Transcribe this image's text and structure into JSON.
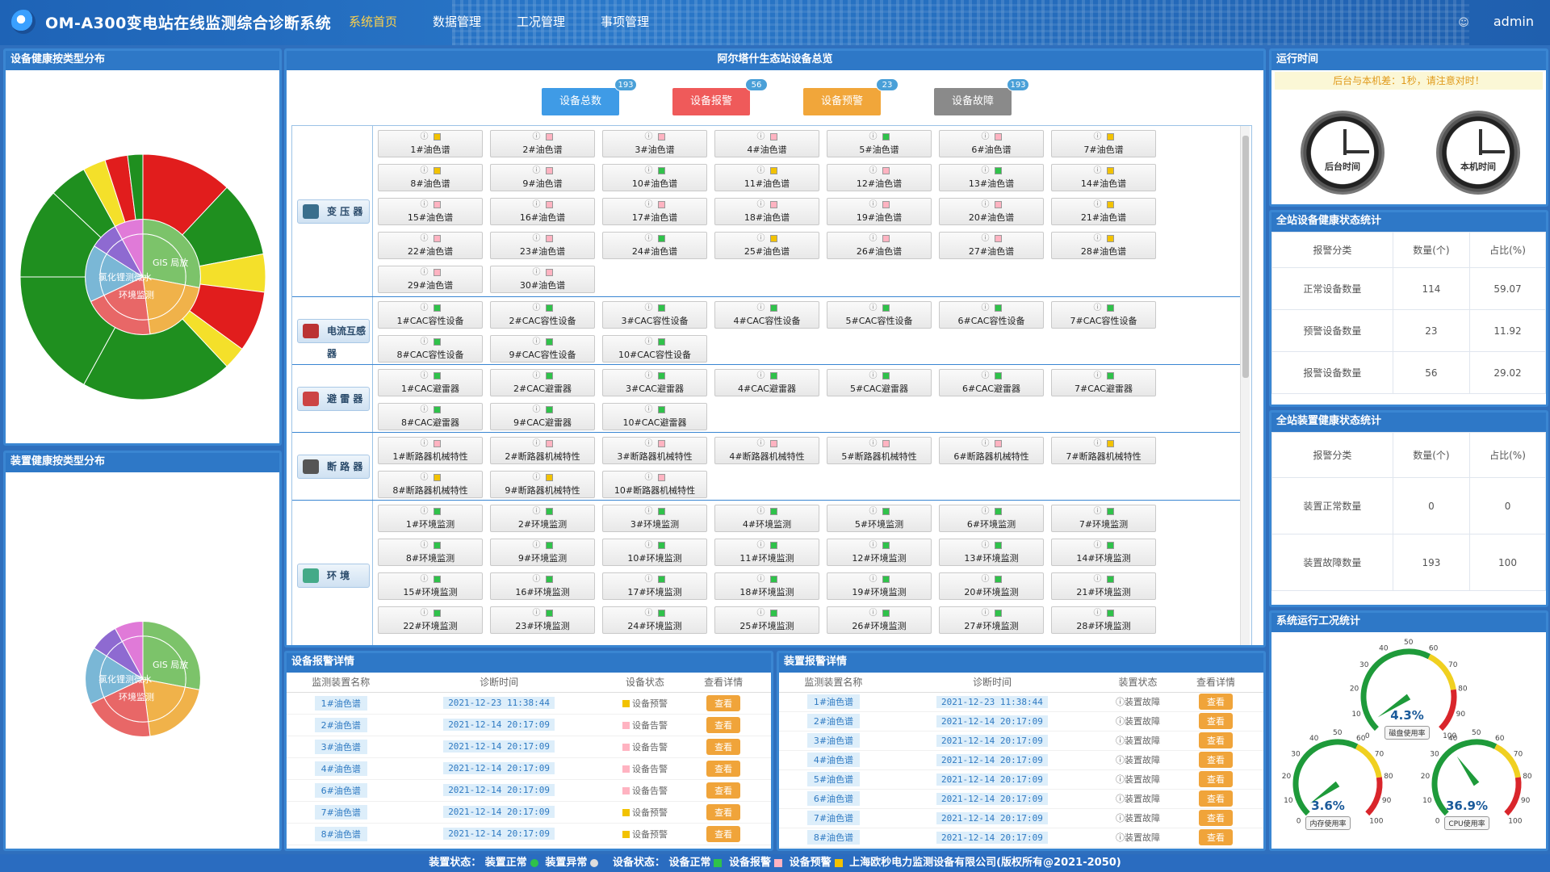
{
  "header": {
    "title": "OM-A300变电站在线监测综合诊断系统",
    "nav": [
      "系统首页",
      "数据管理",
      "工况管理",
      "事项管理"
    ],
    "user": "admin"
  },
  "left_top": {
    "title": "设备健康按类型分布"
  },
  "left_bottom": {
    "title": "装置健康按类型分布"
  },
  "sunburst_inner_labels": [
    "GIS 局放",
    "氯化锂测微水",
    "环境监测"
  ],
  "overview": {
    "title": "阿尔塔什生态站设备总览",
    "buttons": [
      {
        "label": "设备总数",
        "count": "193",
        "color": "#3f9be6"
      },
      {
        "label": "设备报警",
        "count": "56",
        "color": "#ef5a5a"
      },
      {
        "label": "设备预警",
        "count": "23",
        "color": "#f1a63a"
      },
      {
        "label": "设备故障",
        "count": "193",
        "color": "#8a8a8a"
      }
    ],
    "categories": [
      {
        "label": "变 压 器",
        "icon": "transformer-icon",
        "rows": 5,
        "items": [
          {
            "n": "1#油色谱",
            "s": "#f2c200"
          },
          {
            "n": "2#油色谱",
            "s": "#ffb3c1"
          },
          {
            "n": "3#油色谱",
            "s": "#ffb3c1"
          },
          {
            "n": "4#油色谱",
            "s": "#ffb3c1"
          },
          {
            "n": "5#油色谱",
            "s": "#2fc24a"
          },
          {
            "n": "6#油色谱",
            "s": "#ffb3c1"
          },
          {
            "n": "7#油色谱",
            "s": "#f2c200"
          },
          {
            "n": "8#油色谱",
            "s": "#f2c200"
          },
          {
            "n": "9#油色谱",
            "s": "#ffb3c1"
          },
          {
            "n": "10#油色谱",
            "s": "#2fc24a"
          },
          {
            "n": "11#油色谱",
            "s": "#f2c200"
          },
          {
            "n": "12#油色谱",
            "s": "#ffb3c1"
          },
          {
            "n": "13#油色谱",
            "s": "#2fc24a"
          },
          {
            "n": "14#油色谱",
            "s": "#f2c200"
          },
          {
            "n": "15#油色谱",
            "s": "#ffb3c1"
          },
          {
            "n": "16#油色谱",
            "s": "#ffb3c1"
          },
          {
            "n": "17#油色谱",
            "s": "#ffb3c1"
          },
          {
            "n": "18#油色谱",
            "s": "#ffb3c1"
          },
          {
            "n": "19#油色谱",
            "s": "#ffb3c1"
          },
          {
            "n": "20#油色谱",
            "s": "#ffb3c1"
          },
          {
            "n": "21#油色谱",
            "s": "#f2c200"
          },
          {
            "n": "22#油色谱",
            "s": "#ffb3c1"
          },
          {
            "n": "23#油色谱",
            "s": "#ffb3c1"
          },
          {
            "n": "24#油色谱",
            "s": "#2fc24a"
          },
          {
            "n": "25#油色谱",
            "s": "#f2c200"
          },
          {
            "n": "26#油色谱",
            "s": "#ffb3c1"
          },
          {
            "n": "27#油色谱",
            "s": "#ffb3c1"
          },
          {
            "n": "28#油色谱",
            "s": "#f2c200"
          },
          {
            "n": "29#油色谱",
            "s": "#ffb3c1"
          },
          {
            "n": "30#油色谱",
            "s": "#ffb3c1"
          }
        ]
      },
      {
        "label": "电流互感器",
        "icon": "current-transformer-icon",
        "rows": 2,
        "items": [
          {
            "n": "1#CAC容性设备",
            "s": "#2fc24a"
          },
          {
            "n": "2#CAC容性设备",
            "s": "#2fc24a"
          },
          {
            "n": "3#CAC容性设备",
            "s": "#2fc24a"
          },
          {
            "n": "4#CAC容性设备",
            "s": "#2fc24a"
          },
          {
            "n": "5#CAC容性设备",
            "s": "#2fc24a"
          },
          {
            "n": "6#CAC容性设备",
            "s": "#2fc24a"
          },
          {
            "n": "7#CAC容性设备",
            "s": "#2fc24a"
          },
          {
            "n": "8#CAC容性设备",
            "s": "#2fc24a"
          },
          {
            "n": "9#CAC容性设备",
            "s": "#2fc24a"
          },
          {
            "n": "10#CAC容性设备",
            "s": "#2fc24a"
          }
        ]
      },
      {
        "label": "避 雷 器",
        "icon": "arrester-icon",
        "rows": 2,
        "items": [
          {
            "n": "1#CAC避雷器",
            "s": "#2fc24a"
          },
          {
            "n": "2#CAC避雷器",
            "s": "#2fc24a"
          },
          {
            "n": "3#CAC避雷器",
            "s": "#2fc24a"
          },
          {
            "n": "4#CAC避雷器",
            "s": "#2fc24a"
          },
          {
            "n": "5#CAC避雷器",
            "s": "#2fc24a"
          },
          {
            "n": "6#CAC避雷器",
            "s": "#2fc24a"
          },
          {
            "n": "7#CAC避雷器",
            "s": "#2fc24a"
          },
          {
            "n": "8#CAC避雷器",
            "s": "#2fc24a"
          },
          {
            "n": "9#CAC避雷器",
            "s": "#2fc24a"
          },
          {
            "n": "10#CAC避雷器",
            "s": "#2fc24a"
          }
        ]
      },
      {
        "label": "断 路 器",
        "icon": "breaker-icon",
        "rows": 2,
        "items": [
          {
            "n": "1#断路器机械特性",
            "s": "#ffb3c1"
          },
          {
            "n": "2#断路器机械特性",
            "s": "#ffb3c1"
          },
          {
            "n": "3#断路器机械特性",
            "s": "#ffb3c1"
          },
          {
            "n": "4#断路器机械特性",
            "s": "#ffb3c1"
          },
          {
            "n": "5#断路器机械特性",
            "s": "#ffb3c1"
          },
          {
            "n": "6#断路器机械特性",
            "s": "#ffb3c1"
          },
          {
            "n": "7#断路器机械特性",
            "s": "#f2c200"
          },
          {
            "n": "8#断路器机械特性",
            "s": "#f2c200"
          },
          {
            "n": "9#断路器机械特性",
            "s": "#f2c200"
          },
          {
            "n": "10#断路器机械特性",
            "s": "#ffb3c1"
          }
        ]
      },
      {
        "label": "环 境",
        "icon": "environment-icon",
        "rows": 4.4,
        "items": [
          {
            "n": "1#环境监测",
            "s": "#2fc24a"
          },
          {
            "n": "2#环境监测",
            "s": "#2fc24a"
          },
          {
            "n": "3#环境监测",
            "s": "#2fc24a"
          },
          {
            "n": "4#环境监测",
            "s": "#2fc24a"
          },
          {
            "n": "5#环境监测",
            "s": "#2fc24a"
          },
          {
            "n": "6#环境监测",
            "s": "#2fc24a"
          },
          {
            "n": "7#环境监测",
            "s": "#2fc24a"
          },
          {
            "n": "8#环境监测",
            "s": "#2fc24a"
          },
          {
            "n": "9#环境监测",
            "s": "#2fc24a"
          },
          {
            "n": "10#环境监测",
            "s": "#2fc24a"
          },
          {
            "n": "11#环境监测",
            "s": "#2fc24a"
          },
          {
            "n": "12#环境监测",
            "s": "#2fc24a"
          },
          {
            "n": "13#环境监测",
            "s": "#2fc24a"
          },
          {
            "n": "14#环境监测",
            "s": "#2fc24a"
          },
          {
            "n": "15#环境监测",
            "s": "#2fc24a"
          },
          {
            "n": "16#环境监测",
            "s": "#2fc24a"
          },
          {
            "n": "17#环境监测",
            "s": "#2fc24a"
          },
          {
            "n": "18#环境监测",
            "s": "#2fc24a"
          },
          {
            "n": "19#环境监测",
            "s": "#2fc24a"
          },
          {
            "n": "20#环境监测",
            "s": "#2fc24a"
          },
          {
            "n": "21#环境监测",
            "s": "#2fc24a"
          },
          {
            "n": "22#环境监测",
            "s": "#2fc24a"
          },
          {
            "n": "23#环境监测",
            "s": "#2fc24a"
          },
          {
            "n": "24#环境监测",
            "s": "#2fc24a"
          },
          {
            "n": "25#环境监测",
            "s": "#2fc24a"
          },
          {
            "n": "26#环境监测",
            "s": "#2fc24a"
          },
          {
            "n": "27#环境监测",
            "s": "#2fc24a"
          },
          {
            "n": "28#环境监测",
            "s": "#2fc24a"
          }
        ]
      }
    ]
  },
  "run_time": {
    "title": "运行时间",
    "notice": "后台与本机差：1秒，请注意对时！",
    "clock1": "后台时间",
    "clock2": "本机时间"
  },
  "device_stats": {
    "title": "全站设备健康状态统计",
    "headers": [
      "报警分类",
      "数量(个)",
      "占比(%)"
    ],
    "rows": [
      [
        "正常设备数量",
        "114",
        "59.07"
      ],
      [
        "预警设备数量",
        "23",
        "11.92"
      ],
      [
        "报警设备数量",
        "56",
        "29.02"
      ]
    ]
  },
  "unit_stats": {
    "title": "全站装置健康状态统计",
    "headers": [
      "报警分类",
      "数量(个)",
      "占比(%)"
    ],
    "rows": [
      [
        "装置正常数量",
        "0",
        "0"
      ],
      [
        "装置故障数量",
        "193",
        "100"
      ]
    ]
  },
  "sys_stats": {
    "title": "系统运行工况统计",
    "gauges": [
      {
        "label": "磁盘使用率",
        "value": 4.3,
        "text": "4.3%"
      },
      {
        "label": "内存使用率",
        "value": 3.6,
        "text": "3.6%"
      },
      {
        "label": "CPU使用率",
        "value": 36.9,
        "text": "36.9%"
      }
    ]
  },
  "device_alarms": {
    "title": "设备报警详情",
    "headers": [
      "监测装置名称",
      "诊断时间",
      "设备状态",
      "查看详情"
    ],
    "rows": [
      {
        "name": "1#油色谱",
        "time": "2021-12-23 11:38:44",
        "status": "设备预警",
        "color": "#f2c200",
        "btn": "查看"
      },
      {
        "name": "2#油色谱",
        "time": "2021-12-14 20:17:09",
        "status": "设备告警",
        "color": "#ffb3c1",
        "btn": "查看"
      },
      {
        "name": "3#油色谱",
        "time": "2021-12-14 20:17:09",
        "status": "设备告警",
        "color": "#ffb3c1",
        "btn": "查看"
      },
      {
        "name": "4#油色谱",
        "time": "2021-12-14 20:17:09",
        "status": "设备告警",
        "color": "#ffb3c1",
        "btn": "查看"
      },
      {
        "name": "6#油色谱",
        "time": "2021-12-14 20:17:09",
        "status": "设备告警",
        "color": "#ffb3c1",
        "btn": "查看"
      },
      {
        "name": "7#油色谱",
        "time": "2021-12-14 20:17:09",
        "status": "设备预警",
        "color": "#f2c200",
        "btn": "查看"
      },
      {
        "name": "8#油色谱",
        "time": "2021-12-14 20:17:09",
        "status": "设备预警",
        "color": "#f2c200",
        "btn": "查看"
      }
    ]
  },
  "unit_alarms": {
    "title": "装置报警详情",
    "headers": [
      "监测装置名称",
      "诊断时间",
      "装置状态",
      "查看详情"
    ],
    "rows": [
      {
        "name": "1#油色谱",
        "time": "2021-12-23 11:38:44",
        "status": "装置故障",
        "btn": "查看"
      },
      {
        "name": "2#油色谱",
        "time": "2021-12-14 20:17:09",
        "status": "装置故障",
        "btn": "查看"
      },
      {
        "name": "3#油色谱",
        "time": "2021-12-14 20:17:09",
        "status": "装置故障",
        "btn": "查看"
      },
      {
        "name": "4#油色谱",
        "time": "2021-12-14 20:17:09",
        "status": "装置故障",
        "btn": "查看"
      },
      {
        "name": "5#油色谱",
        "time": "2021-12-14 20:17:09",
        "status": "装置故障",
        "btn": "查看"
      },
      {
        "name": "6#油色谱",
        "time": "2021-12-14 20:17:09",
        "status": "装置故障",
        "btn": "查看"
      },
      {
        "name": "7#油色谱",
        "time": "2021-12-14 20:17:09",
        "status": "装置故障",
        "btn": "查看"
      },
      {
        "name": "8#油色谱",
        "time": "2021-12-14 20:17:09",
        "status": "装置故障",
        "btn": "查看"
      }
    ]
  },
  "footer": {
    "unit_label": "装置状态：",
    "unit_ok": "装置正常",
    "unit_bad": "装置异常",
    "dev_label": "设备状态：",
    "dev_ok": "设备正常",
    "dev_alarm": "设备报警",
    "dev_warn": "设备预警",
    "copyright": "上海欧秒电力监测设备有限公司(版权所有@2021-2050)"
  }
}
